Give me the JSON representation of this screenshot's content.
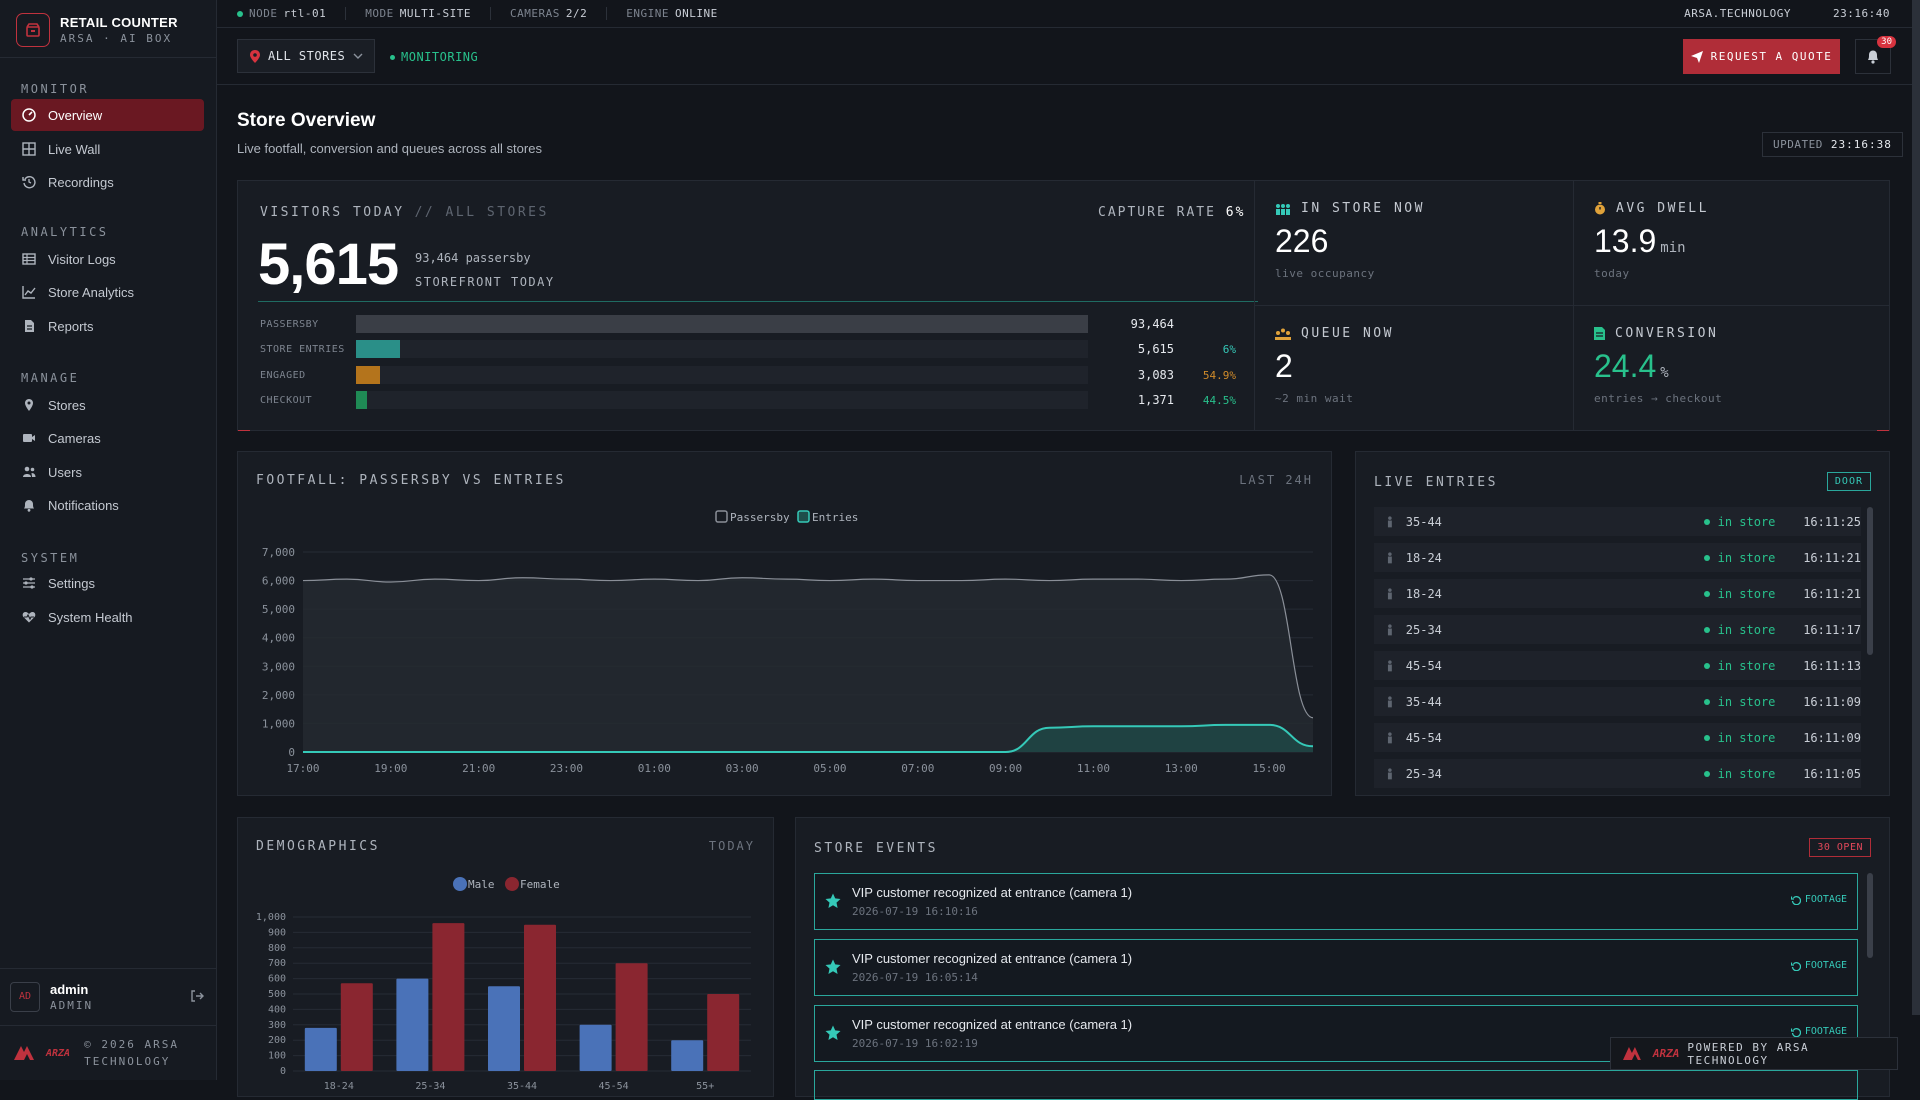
{
  "brand": {
    "title": "RETAIL COUNTER",
    "subtitle": "ARSA · AI BOX"
  },
  "topbar": {
    "node_label": "NODE",
    "node": "rtl-01",
    "mode_label": "MODE",
    "mode": "MULTI-SITE",
    "cameras_label": "CAMERAS",
    "cameras": "2/2",
    "engine_label": "ENGINE",
    "engine": "ONLINE",
    "org": "ARSA.TECHNOLOGY",
    "clock": "23:16:40"
  },
  "sidebar": {
    "sections": [
      {
        "label": "MONITOR",
        "items": [
          {
            "label": "Overview",
            "icon": "gauge-icon",
            "active": true
          },
          {
            "label": "Live Wall",
            "icon": "grid-icon"
          },
          {
            "label": "Recordings",
            "icon": "history-icon"
          }
        ]
      },
      {
        "label": "ANALYTICS",
        "items": [
          {
            "label": "Visitor Logs",
            "icon": "table-icon"
          },
          {
            "label": "Store Analytics",
            "icon": "chart-line-icon"
          },
          {
            "label": "Reports",
            "icon": "file-icon"
          }
        ]
      },
      {
        "label": "MANAGE",
        "items": [
          {
            "label": "Stores",
            "icon": "map-pin-icon"
          },
          {
            "label": "Cameras",
            "icon": "video-icon"
          },
          {
            "label": "Users",
            "icon": "users-icon"
          },
          {
            "label": "Notifications",
            "icon": "bell-icon"
          }
        ]
      },
      {
        "label": "SYSTEM",
        "items": [
          {
            "label": "Settings",
            "icon": "sliders-icon"
          },
          {
            "label": "System Health",
            "icon": "heart-pulse-icon"
          }
        ]
      }
    ],
    "user": {
      "initials": "AD",
      "name": "admin",
      "role": "ADMIN"
    },
    "footer": {
      "logo": "ARZA",
      "line1": "© 2026 ARSA",
      "line2": "TECHNOLOGY"
    }
  },
  "toolbar": {
    "store": "ALL STORES",
    "status": "MONITORING",
    "quote": "REQUEST A QUOTE",
    "notifications": "30"
  },
  "header": {
    "title": "Store Overview",
    "subtitle": "Live footfall, conversion and queues across all stores",
    "updated_label": "UPDATED",
    "updated": "23:16:38"
  },
  "visitors": {
    "title": "VISITORS TODAY",
    "scope": "// ALL STORES",
    "capture_label": "CAPTURE RATE",
    "capture": "6%",
    "value": "5,615",
    "passersby": "93,464 passersby",
    "label": "STOREFRONT TODAY",
    "funnel": [
      {
        "label": "PASSERSBY",
        "value": "93,464",
        "pct": "",
        "ratio": 1.0,
        "color": "#3a3e46"
      },
      {
        "label": "STORE ENTRIES",
        "value": "5,615",
        "pct": "6%",
        "ratio": 0.06,
        "color": "#2a8f88",
        "pct_color": "#35c9b8"
      },
      {
        "label": "ENGAGED",
        "value": "3,083",
        "pct": "54.9%",
        "ratio": 0.033,
        "color": "#b4741c",
        "pct_color": "#d08b2a"
      },
      {
        "label": "CHECKOUT",
        "value": "1,371",
        "pct": "44.5%",
        "ratio": 0.015,
        "color": "#1f8a55",
        "pct_color": "#28c18c"
      }
    ]
  },
  "kpis": {
    "in_store": {
      "title": "IN STORE NOW",
      "value": "226",
      "sub": "live occupancy",
      "icon": "people-icon",
      "color": "#35c9b8"
    },
    "dwell": {
      "title": "AVG DWELL",
      "value": "13.9",
      "unit": "min",
      "sub": "today",
      "icon": "stopwatch-icon",
      "color": "#e0a23a"
    },
    "queue": {
      "title": "QUEUE NOW",
      "value": "2",
      "sub": "~2 min wait",
      "icon": "queue-icon",
      "color": "#e0a23a"
    },
    "conversion": {
      "title": "CONVERSION",
      "value": "24.4",
      "unit": "%",
      "sub": "entries → checkout",
      "icon": "receipt-icon",
      "color": "#28c18c"
    }
  },
  "footfall": {
    "title": "FOOTFALL: PASSERSBY VS ENTRIES",
    "range": "LAST 24H"
  },
  "chart_data": [
    {
      "type": "area",
      "title": "FOOTFALL: PASSERSBY VS ENTRIES",
      "x": [
        "17:00",
        "18:00",
        "19:00",
        "20:00",
        "21:00",
        "22:00",
        "23:00",
        "00:00",
        "01:00",
        "02:00",
        "03:00",
        "04:00",
        "05:00",
        "06:00",
        "07:00",
        "08:00",
        "09:00",
        "10:00",
        "11:00",
        "12:00",
        "13:00",
        "14:00",
        "15:00",
        "16:00"
      ],
      "series": [
        {
          "name": "Passersby",
          "color": "#8a8f98",
          "values": [
            6000,
            6050,
            5950,
            6050,
            6000,
            6100,
            6050,
            6000,
            6050,
            6000,
            6100,
            6050,
            6000,
            6050,
            6000,
            6000,
            6050,
            6000,
            6050,
            6050,
            6000,
            6050,
            6200,
            1200
          ]
        },
        {
          "name": "Entries",
          "color": "#35c9b8",
          "values": [
            0,
            0,
            0,
            0,
            0,
            0,
            0,
            0,
            0,
            0,
            0,
            0,
            0,
            0,
            0,
            0,
            0,
            850,
            900,
            900,
            900,
            950,
            950,
            200
          ]
        }
      ],
      "ylim": [
        0,
        7000
      ],
      "yticks": [
        0,
        1000,
        2000,
        3000,
        4000,
        5000,
        6000,
        7000
      ],
      "xticks": [
        "17:00",
        "19:00",
        "21:00",
        "23:00",
        "01:00",
        "03:00",
        "05:00",
        "07:00",
        "09:00",
        "11:00",
        "13:00",
        "15:00"
      ],
      "legend": "top"
    },
    {
      "type": "bar",
      "title": "DEMOGRAPHICS",
      "categories": [
        "18-24",
        "25-34",
        "35-44",
        "45-54",
        "55+"
      ],
      "series": [
        {
          "name": "Male",
          "color": "#4a72b8",
          "values": [
            280,
            600,
            550,
            300,
            200
          ]
        },
        {
          "name": "Female",
          "color": "#8a2630",
          "values": [
            570,
            960,
            950,
            700,
            500
          ]
        }
      ],
      "ylim": [
        0,
        1000
      ],
      "yticks": [
        0,
        100,
        200,
        300,
        400,
        500,
        600,
        700,
        800,
        900,
        1000
      ],
      "legend": "top"
    }
  ],
  "live_entries": {
    "title": "LIVE ENTRIES",
    "badge": "DOOR",
    "rows": [
      {
        "age": "35-44",
        "status": "in store",
        "time": "16:11:25"
      },
      {
        "age": "18-24",
        "status": "in store",
        "time": "16:11:21"
      },
      {
        "age": "18-24",
        "status": "in store",
        "time": "16:11:21"
      },
      {
        "age": "25-34",
        "status": "in store",
        "time": "16:11:17"
      },
      {
        "age": "45-54",
        "status": "in store",
        "time": "16:11:13"
      },
      {
        "age": "35-44",
        "status": "in store",
        "time": "16:11:09"
      },
      {
        "age": "45-54",
        "status": "in store",
        "time": "16:11:09"
      },
      {
        "age": "25-34",
        "status": "in store",
        "time": "16:11:05"
      }
    ]
  },
  "demographics": {
    "title": "DEMOGRAPHICS",
    "range": "TODAY"
  },
  "events": {
    "title": "STORE EVENTS",
    "badge": "30 OPEN",
    "items": [
      {
        "title": "VIP customer recognized at entrance (camera 1)",
        "time": "2026-07-19 16:10:16",
        "action": "FOOTAGE"
      },
      {
        "title": "VIP customer recognized at entrance (camera 1)",
        "time": "2026-07-19 16:05:14",
        "action": "FOOTAGE"
      },
      {
        "title": "VIP customer recognized at entrance (camera 1)",
        "time": "2026-07-19 16:02:19",
        "action": "FOOTAGE"
      }
    ]
  },
  "powered": {
    "logo": "ARZA",
    "text": "POWERED BY ARSA TECHNOLOGY"
  }
}
